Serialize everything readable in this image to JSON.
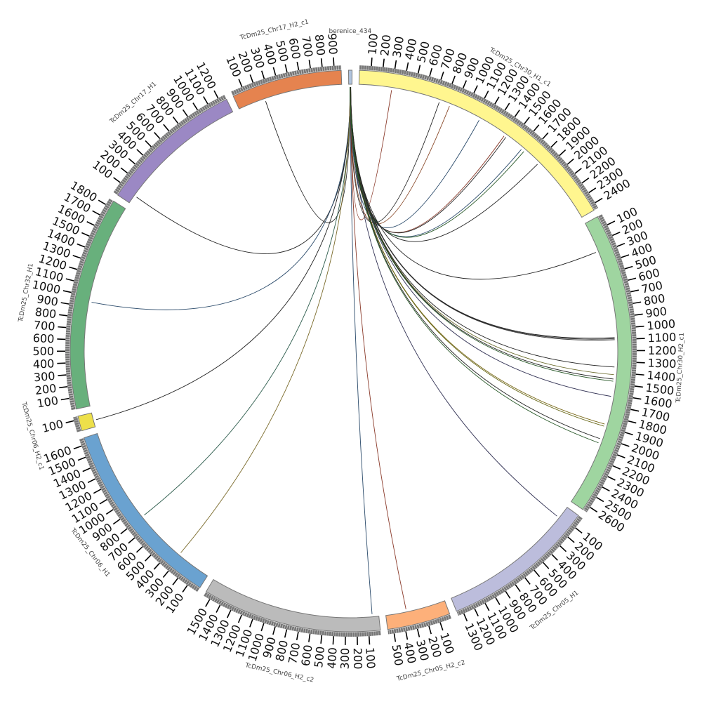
{
  "diagram": {
    "type": "circos",
    "tick_step": 100,
    "chromosomes": [
      {
        "name": "berenice_434",
        "length": 30,
        "color": "#b0c4de",
        "ticks": false
      },
      {
        "name": "TcDm25_Chr30_H1_c1",
        "length": 2450,
        "color": "#fff68f",
        "ticks": true
      },
      {
        "name": "TcDm25_Chr30_H2_c1",
        "length": 2650,
        "color": "#9fd5a0",
        "ticks": true
      },
      {
        "name": "TcDm25_Chr05_H1",
        "length": 1350,
        "color": "#bcbddc",
        "ticks": true
      },
      {
        "name": "TcDm25_Chr05_H2_c2",
        "length": 550,
        "color": "#fdb07a",
        "ticks": true
      },
      {
        "name": "TcDm25_Chr06_H2_c2",
        "length": 1560,
        "color": "#bbbbbb",
        "ticks": true
      },
      {
        "name": "TcDm25_Chr06_H1",
        "length": 1660,
        "color": "#6aa2d0",
        "ticks": true
      },
      {
        "name": "TcDm25_Chr06_H2_c1",
        "length": 130,
        "color": "#ede04a",
        "ticks": true
      },
      {
        "name": "TcDm25_Chr32_H1",
        "length": 1860,
        "color": "#68b07c",
        "ticks": true
      },
      {
        "name": "TcDm25_Chr17_H1",
        "length": 1260,
        "color": "#9b88c4",
        "ticks": true
      },
      {
        "name": "TcDm25_Chr17_H2_c1",
        "length": 960,
        "color": "#e5834f",
        "ticks": true
      }
    ],
    "links": [
      {
        "to": 10,
        "pos": 250,
        "color": "#222222"
      },
      {
        "to": 9,
        "pos": 80,
        "color": "#222222"
      },
      {
        "to": 8,
        "pos": 950,
        "color": "#2a4a6a"
      },
      {
        "to": 7,
        "pos": 60,
        "color": "#222222"
      },
      {
        "to": 6,
        "pos": 800,
        "color": "#2a5a4a"
      },
      {
        "to": 6,
        "pos": 320,
        "color": "#7a6a2a"
      },
      {
        "to": 5,
        "pos": 60,
        "color": "#2a4a6a"
      },
      {
        "to": 4,
        "pos": 360,
        "color": "#8a3a2a"
      },
      {
        "to": 3,
        "pos": 120,
        "color": "#333355"
      },
      {
        "to": 1,
        "pos": 300,
        "color": "#8a3a2a"
      },
      {
        "to": 1,
        "pos": 750,
        "color": "#222222"
      },
      {
        "to": 1,
        "pos": 850,
        "color": "#8a4a2a"
      },
      {
        "to": 1,
        "pos": 1150,
        "color": "#2a4a6a"
      },
      {
        "to": 1,
        "pos": 1420,
        "color": "#8a3a2a"
      },
      {
        "to": 1,
        "pos": 1440,
        "color": "#222222"
      },
      {
        "to": 1,
        "pos": 1620,
        "color": "#2a4a6a"
      },
      {
        "to": 1,
        "pos": 1650,
        "color": "#2a5a2a"
      },
      {
        "to": 1,
        "pos": 1820,
        "color": "#222222"
      },
      {
        "to": 2,
        "pos": 280,
        "color": "#222222"
      },
      {
        "to": 2,
        "pos": 1080,
        "color": "#222222"
      },
      {
        "to": 2,
        "pos": 1090,
        "color": "#222222"
      },
      {
        "to": 2,
        "pos": 1100,
        "color": "#333333"
      },
      {
        "to": 2,
        "pos": 1350,
        "color": "#222222"
      },
      {
        "to": 2,
        "pos": 1420,
        "color": "#6a6a2a"
      },
      {
        "to": 2,
        "pos": 1460,
        "color": "#222222"
      },
      {
        "to": 2,
        "pos": 1480,
        "color": "#2a5a2a"
      },
      {
        "to": 2,
        "pos": 1620,
        "color": "#333355"
      },
      {
        "to": 2,
        "pos": 1880,
        "color": "#7a6a1a"
      },
      {
        "to": 2,
        "pos": 1900,
        "color": "#6a6a1a"
      },
      {
        "to": 2,
        "pos": 2020,
        "color": "#222222"
      },
      {
        "to": 2,
        "pos": 2060,
        "color": "#2a5a2a"
      }
    ]
  }
}
